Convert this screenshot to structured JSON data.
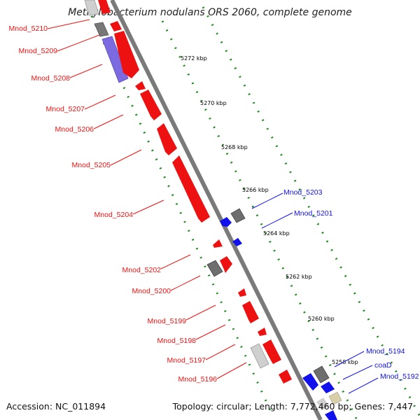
{
  "title": "Methylobacterium nodulans ORS 2060, complete genome",
  "accession": "Accession: NC_011894",
  "topology": "Topology: circular; Length: 7,772,460 bp; Genes: 7,447",
  "colors": {
    "forward": "#ee1111",
    "reverse": "#1111ee",
    "grey": "#6a6a6a",
    "lightgrey": "#c8c8c8",
    "purple": "#7766dd",
    "tick_dots": "#228822",
    "backbone": "#8a8a8a"
  },
  "kbp_markers": [
    "5272 kbp",
    "5270 kbp",
    "5268 kbp",
    "5266 kbp",
    "5264 kbp",
    "5262 kbp",
    "5260 kbp",
    "5258 kbp"
  ],
  "genes_forward": [
    "Mnod_5210",
    "Mnod_5209",
    "Mnod_5208",
    "Mnod_5207",
    "Mnod_5206",
    "Mnod_5205",
    "Mnod_5204",
    "Mnod_5202",
    "Mnod_5200",
    "Mnod_5199",
    "Mnod_5198",
    "Mnod_5197",
    "Mnod_5196"
  ],
  "genes_reverse": [
    "Mnod_5203",
    "Mnod_5201",
    "Mnod_5194",
    "coaD",
    "Mnod_5192"
  ]
}
